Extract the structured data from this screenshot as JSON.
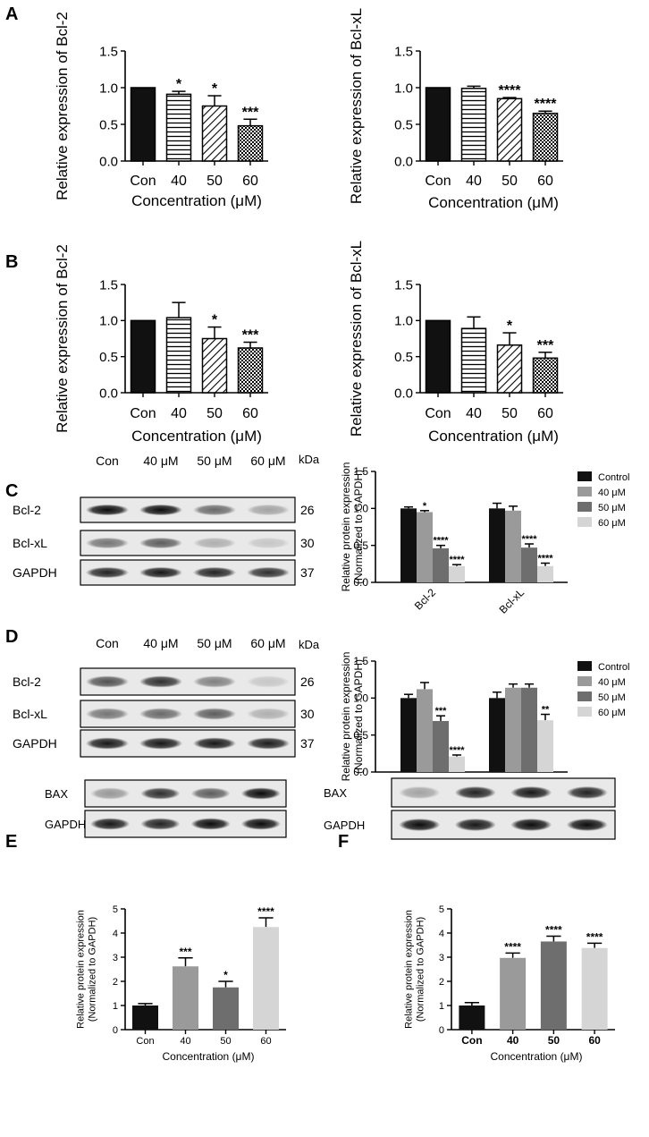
{
  "panels": {
    "A": "A",
    "B": "B",
    "C": "C",
    "D": "D",
    "E": "E",
    "F": "F"
  },
  "chart_data": [
    {
      "id": "A1",
      "type": "bar",
      "panel": "A",
      "categories": [
        "Con",
        "40",
        "50",
        "60"
      ],
      "values": [
        1.0,
        0.91,
        0.75,
        0.48
      ],
      "errors": [
        0,
        0.04,
        0.14,
        0.09
      ],
      "sig": [
        "",
        "*",
        "*",
        "***"
      ],
      "patterns": [
        "solid",
        "hstripe",
        "diag",
        "check"
      ],
      "xlabel": "Concentration (μM)",
      "ylabel": "Relative expression of Bcl-2",
      "ylim": [
        0,
        1.5
      ],
      "yticks": [
        0.0,
        0.5,
        1.0,
        1.5
      ],
      "yticklabels": [
        "0.0",
        "0.5",
        "1.0",
        "1.5"
      ]
    },
    {
      "id": "A2",
      "type": "bar",
      "panel": "A",
      "categories": [
        "Con",
        "40",
        "50",
        "60"
      ],
      "values": [
        1.0,
        0.99,
        0.85,
        0.65
      ],
      "errors": [
        0,
        0.03,
        0.015,
        0.03
      ],
      "sig": [
        "",
        "",
        "****",
        "****"
      ],
      "patterns": [
        "solid",
        "hstripe",
        "diag",
        "check"
      ],
      "xlabel": "Concentration (μM)",
      "ylabel": "Relative expression of Bcl-xL",
      "ylim": [
        0,
        1.5
      ],
      "yticks": [
        0.0,
        0.5,
        1.0,
        1.5
      ],
      "yticklabels": [
        "0.0",
        "0.5",
        "1.0",
        "1.5"
      ]
    },
    {
      "id": "B1",
      "type": "bar",
      "panel": "B",
      "categories": [
        "Con",
        "40",
        "50",
        "60"
      ],
      "values": [
        1.0,
        1.04,
        0.75,
        0.62
      ],
      "errors": [
        0,
        0.21,
        0.16,
        0.08
      ],
      "sig": [
        "",
        "",
        "*",
        "***"
      ],
      "patterns": [
        "solid",
        "hstripe",
        "diag",
        "check"
      ],
      "xlabel": "Concentration (μM)",
      "ylabel": "Relative expression of Bcl-2",
      "ylim": [
        0,
        1.5
      ],
      "yticks": [
        0.0,
        0.5,
        1.0,
        1.5
      ],
      "yticklabels": [
        "0.0",
        "0.5",
        "1.0",
        "1.5"
      ]
    },
    {
      "id": "B2",
      "type": "bar",
      "panel": "B",
      "categories": [
        "Con",
        "40",
        "50",
        "60"
      ],
      "values": [
        1.0,
        0.89,
        0.66,
        0.48
      ],
      "errors": [
        0,
        0.16,
        0.17,
        0.08
      ],
      "sig": [
        "",
        "",
        "*",
        "***"
      ],
      "patterns": [
        "solid",
        "hstripe",
        "diag",
        "check"
      ],
      "xlabel": "Concentration (μM)",
      "ylabel": "Relative expression of Bcl-xL",
      "ylim": [
        0,
        1.5
      ],
      "yticks": [
        0.0,
        0.5,
        1.0,
        1.5
      ],
      "yticklabels": [
        "0.0",
        "0.5",
        "1.0",
        "1.5"
      ]
    },
    {
      "id": "C",
      "type": "bar",
      "panel": "C",
      "categories": [
        "Bcl-2",
        "Bcl-xL"
      ],
      "series": [
        {
          "name": "Control",
          "values": [
            1.0,
            1.0
          ],
          "errors": [
            0.02,
            0.07
          ],
          "sig": [
            "",
            ""
          ],
          "color": "#111111"
        },
        {
          "name": "40 μM",
          "values": [
            0.95,
            0.97
          ],
          "errors": [
            0.02,
            0.06
          ],
          "sig": [
            "*",
            ""
          ],
          "color": "#9a9a9a"
        },
        {
          "name": "50 μM",
          "values": [
            0.46,
            0.47
          ],
          "errors": [
            0.04,
            0.05
          ],
          "sig": [
            "****",
            "****"
          ],
          "color": "#6e6e6e"
        },
        {
          "name": "60 μM",
          "values": [
            0.22,
            0.22
          ],
          "errors": [
            0.02,
            0.04
          ],
          "sig": [
            "****",
            "****"
          ],
          "color": "#d5d5d5"
        }
      ],
      "ylabel": "Relative protein expression\n(Normalized to GAPDH)",
      "ylim": [
        0,
        1.5
      ],
      "yticks": [
        0.0,
        0.5,
        1.0,
        1.5
      ],
      "yticklabels": [
        "0.0",
        "0.5",
        "1.0",
        "1.5"
      ],
      "legend": "top-right"
    },
    {
      "id": "D",
      "type": "bar",
      "panel": "D",
      "categories": [
        "Bcl-2",
        "Bcl-xL"
      ],
      "series": [
        {
          "name": "Control",
          "values": [
            1.0,
            1.0
          ],
          "errors": [
            0.05,
            0.08
          ],
          "sig": [
            "",
            ""
          ],
          "color": "#111111"
        },
        {
          "name": "40 μM",
          "values": [
            1.12,
            1.14
          ],
          "errors": [
            0.09,
            0.05
          ],
          "sig": [
            "",
            ""
          ],
          "color": "#9a9a9a"
        },
        {
          "name": "50 μM",
          "values": [
            0.69,
            1.14
          ],
          "errors": [
            0.07,
            0.05
          ],
          "sig": [
            "***",
            ""
          ],
          "color": "#6e6e6e"
        },
        {
          "name": "60 μM",
          "values": [
            0.21,
            0.7
          ],
          "errors": [
            0.02,
            0.08
          ],
          "sig": [
            "****",
            "**"
          ],
          "color": "#d5d5d5"
        }
      ],
      "ylabel": "Relative protein expression\n(Normalized to GAPDH)",
      "ylim": [
        0,
        1.5
      ],
      "yticks": [
        0.0,
        0.5,
        1.0,
        1.5
      ],
      "yticklabels": [
        "0.0",
        "0.5",
        "1.0",
        "1.5"
      ],
      "legend": "top-right"
    },
    {
      "id": "E",
      "type": "bar",
      "panel": "E",
      "categories": [
        "Con",
        "40",
        "50",
        "60"
      ],
      "values": [
        1.0,
        2.62,
        1.75,
        4.25
      ],
      "errors": [
        0.08,
        0.35,
        0.25,
        0.38
      ],
      "sig": [
        "",
        "***",
        "*",
        "****"
      ],
      "colors": [
        "#111111",
        "#9a9a9a",
        "#6e6e6e",
        "#d5d5d5"
      ],
      "xlabel": "Concentration (μM)",
      "ylabel": "Relative protein expression\n(Normalized to GAPDH)",
      "ylim": [
        0,
        5
      ],
      "yticks": [
        0,
        1,
        2,
        3,
        4,
        5
      ],
      "yticklabels": [
        "0",
        "1",
        "2",
        "3",
        "4",
        "5"
      ]
    },
    {
      "id": "F",
      "type": "bar",
      "panel": "F",
      "categories": [
        "Con",
        "40",
        "50",
        "60"
      ],
      "values": [
        1.0,
        2.97,
        3.65,
        3.38
      ],
      "errors": [
        0.12,
        0.2,
        0.22,
        0.2
      ],
      "sig": [
        "",
        "****",
        "****",
        "****"
      ],
      "colors": [
        "#111111",
        "#9a9a9a",
        "#6e6e6e",
        "#d5d5d5"
      ],
      "xlabel": "Concentration (μM)",
      "ylabel": "Relative protein expression\n(Normalized to GAPDH)",
      "ylim": [
        0,
        5
      ],
      "yticks": [
        0,
        1,
        2,
        3,
        4,
        5
      ],
      "yticklabels": [
        "0",
        "1",
        "2",
        "3",
        "4",
        "5"
      ]
    }
  ],
  "blots": [
    {
      "id": "C",
      "lanes": [
        "Con",
        "40 μM",
        "50 μM",
        "60 μM"
      ],
      "unit": "kDa",
      "rows": [
        {
          "label": "Bcl-2",
          "kda": "26",
          "intensity": [
            0.95,
            0.95,
            0.55,
            0.3
          ]
        },
        {
          "label": "Bcl-xL",
          "kda": "30",
          "intensity": [
            0.5,
            0.6,
            0.25,
            0.15
          ]
        },
        {
          "label": "GAPDH",
          "kda": "37",
          "intensity": [
            0.85,
            0.9,
            0.85,
            0.8
          ]
        }
      ]
    },
    {
      "id": "D",
      "lanes": [
        "Con",
        "40 μM",
        "50 μM",
        "60 μM"
      ],
      "unit": "kDa",
      "rows": [
        {
          "label": "Bcl-2",
          "kda": "26",
          "intensity": [
            0.65,
            0.8,
            0.45,
            0.15
          ]
        },
        {
          "label": "Bcl-xL",
          "kda": "30",
          "intensity": [
            0.5,
            0.55,
            0.6,
            0.25
          ]
        },
        {
          "label": "GAPDH",
          "kda": "37",
          "intensity": [
            0.9,
            0.9,
            0.9,
            0.88
          ]
        }
      ]
    },
    {
      "id": "E",
      "lanes": [],
      "unit": "",
      "rows": [
        {
          "label": "BAX",
          "kda": "",
          "intensity": [
            0.35,
            0.8,
            0.6,
            0.95
          ]
        },
        {
          "label": "GAPDH",
          "kda": "",
          "intensity": [
            0.9,
            0.85,
            0.95,
            0.95
          ]
        }
      ]
    },
    {
      "id": "F",
      "lanes": [],
      "unit": "",
      "rows": [
        {
          "label": "BAX",
          "kda": "",
          "intensity": [
            0.3,
            0.85,
            0.9,
            0.85
          ]
        },
        {
          "label": "GAPDH",
          "kda": "",
          "intensity": [
            0.95,
            0.9,
            0.95,
            0.95
          ]
        }
      ]
    }
  ],
  "colors": {
    "axis": "#000000",
    "gray_light": "#d5d5d5",
    "gray_mid": "#6e6e6e",
    "gray": "#9a9a9a",
    "black": "#111111"
  }
}
